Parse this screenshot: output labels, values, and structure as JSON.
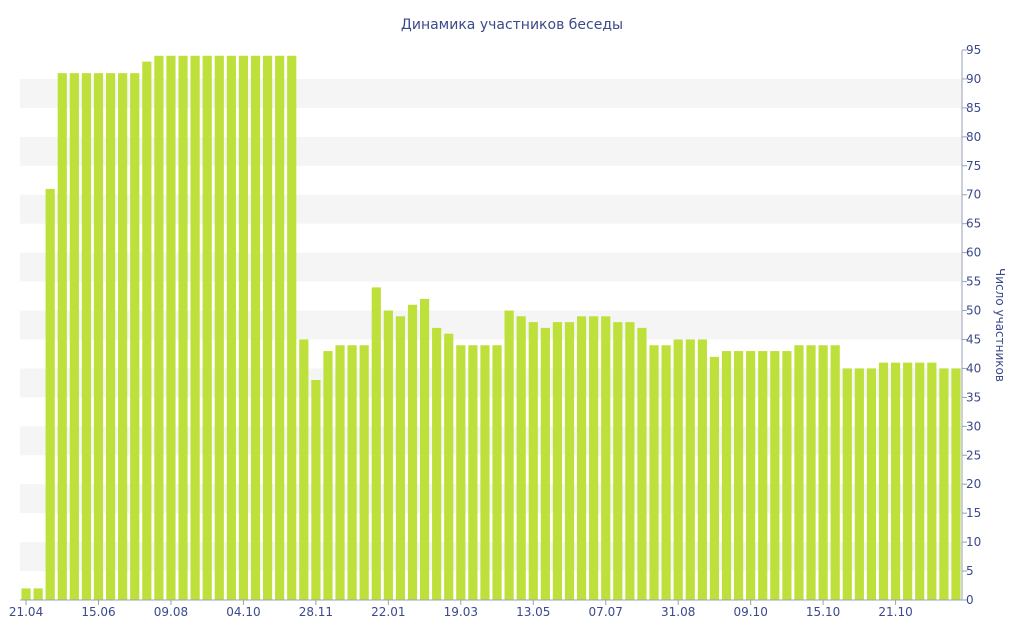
{
  "chart_data": {
    "type": "bar",
    "title": "Динамика участников беседы",
    "xlabel": "",
    "ylabel": "Число участников",
    "ylim": [
      0,
      95
    ],
    "yticks": [
      0,
      5,
      10,
      15,
      20,
      25,
      30,
      35,
      40,
      45,
      50,
      55,
      60,
      65,
      70,
      75,
      80,
      85,
      90,
      95
    ],
    "y_axis_side": "right",
    "grid": "alternating horizontal bands",
    "x_tick_labels": [
      {
        "index": 0,
        "label": "21.04"
      },
      {
        "index": 6,
        "label": "15.06"
      },
      {
        "index": 12,
        "label": "09.08"
      },
      {
        "index": 18,
        "label": "04.10"
      },
      {
        "index": 24,
        "label": "28.11"
      },
      {
        "index": 30,
        "label": "22.01"
      },
      {
        "index": 36,
        "label": "19.03"
      },
      {
        "index": 42,
        "label": "13.05"
      },
      {
        "index": 48,
        "label": "07.07"
      },
      {
        "index": 54,
        "label": "31.08"
      },
      {
        "index": 60,
        "label": "09.10"
      },
      {
        "index": 66,
        "label": "15.10"
      },
      {
        "index": 72,
        "label": "21.10"
      }
    ],
    "values": [
      2,
      2,
      71,
      91,
      91,
      91,
      91,
      91,
      91,
      91,
      93,
      94,
      94,
      94,
      94,
      94,
      94,
      94,
      94,
      94,
      94,
      94,
      94,
      45,
      38,
      43,
      44,
      44,
      44,
      54,
      50,
      49,
      51,
      52,
      47,
      46,
      44,
      44,
      44,
      44,
      50,
      49,
      48,
      47,
      48,
      48,
      49,
      49,
      49,
      48,
      48,
      47,
      44,
      44,
      45,
      45,
      45,
      42,
      43,
      43,
      43,
      43,
      43,
      43,
      44,
      44,
      44,
      44,
      40,
      40,
      40,
      41,
      41,
      41,
      41,
      41,
      40,
      40
    ],
    "bar_color": "#bde03a",
    "band_color": "#f5f5f5",
    "text_color": "#3b4a8a"
  }
}
